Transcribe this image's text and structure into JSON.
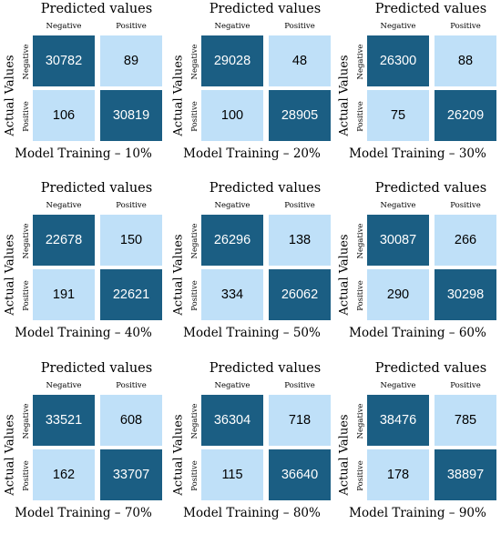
{
  "colors": {
    "dark_cell": "#1b5e83",
    "light_cell": "#bfe0f8",
    "dark_text": "#ffffff",
    "light_text": "#000000"
  },
  "chart_data": [
    {
      "type": "heatmap",
      "title": "Predicted values",
      "ylabel": "Actual Values",
      "caption": "Model Training – 10%",
      "x_labels": [
        "Negative",
        "Positive"
      ],
      "y_labels": [
        "Negative",
        "Positive"
      ],
      "values": [
        [
          30782,
          89
        ],
        [
          106,
          30819
        ]
      ]
    },
    {
      "type": "heatmap",
      "title": "Predicted values",
      "ylabel": "Actual Values",
      "caption": "Model Training – 20%",
      "x_labels": [
        "Negative",
        "Positive"
      ],
      "y_labels": [
        "Negative",
        "Positive"
      ],
      "values": [
        [
          29028,
          48
        ],
        [
          100,
          28905
        ]
      ]
    },
    {
      "type": "heatmap",
      "title": "Predicted values",
      "ylabel": "Actual Values",
      "caption": "Model Training – 30%",
      "x_labels": [
        "Negative",
        "Positive"
      ],
      "y_labels": [
        "Negative",
        "Positive"
      ],
      "values": [
        [
          26300,
          88
        ],
        [
          75,
          26209
        ]
      ]
    },
    {
      "type": "heatmap",
      "title": "Predicted values",
      "ylabel": "Actual Values",
      "caption": "Model Training – 40%",
      "x_labels": [
        "Negative",
        "Positive"
      ],
      "y_labels": [
        "Negative",
        "Positive"
      ],
      "values": [
        [
          22678,
          150
        ],
        [
          191,
          22621
        ]
      ]
    },
    {
      "type": "heatmap",
      "title": "Predicted values",
      "ylabel": "Actual Values",
      "caption": "Model Training – 50%",
      "x_labels": [
        "Negative",
        "Positive"
      ],
      "y_labels": [
        "Negative",
        "Positive"
      ],
      "values": [
        [
          26296,
          138
        ],
        [
          334,
          26062
        ]
      ]
    },
    {
      "type": "heatmap",
      "title": "Predicted values",
      "ylabel": "Actual Values",
      "caption": "Model Training – 60%",
      "x_labels": [
        "Negative",
        "Positive"
      ],
      "y_labels": [
        "Negative",
        "Positive"
      ],
      "values": [
        [
          30087,
          266
        ],
        [
          290,
          30298
        ]
      ]
    },
    {
      "type": "heatmap",
      "title": "Predicted values",
      "ylabel": "Actual Values",
      "caption": "Model Training – 70%",
      "x_labels": [
        "Negative",
        "Positive"
      ],
      "y_labels": [
        "Negative",
        "Positive"
      ],
      "values": [
        [
          33521,
          608
        ],
        [
          162,
          33707
        ]
      ]
    },
    {
      "type": "heatmap",
      "title": "Predicted values",
      "ylabel": "Actual Values",
      "caption": "Model Training – 80%",
      "x_labels": [
        "Negative",
        "Positive"
      ],
      "y_labels": [
        "Negative",
        "Positive"
      ],
      "values": [
        [
          36304,
          718
        ],
        [
          115,
          36640
        ]
      ]
    },
    {
      "type": "heatmap",
      "title": "Predicted values",
      "ylabel": "Actual Values",
      "caption": "Model Training – 90%",
      "x_labels": [
        "Negative",
        "Positive"
      ],
      "y_labels": [
        "Negative",
        "Positive"
      ],
      "values": [
        [
          38476,
          785
        ],
        [
          178,
          38897
        ]
      ]
    }
  ]
}
